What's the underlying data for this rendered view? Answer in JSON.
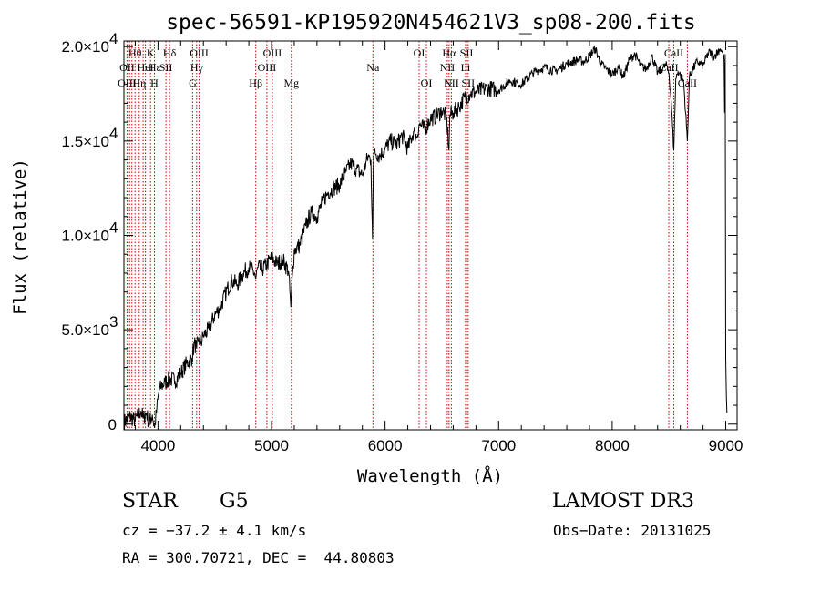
{
  "chart_data": {
    "type": "line",
    "title": "spec-56591-KP195920N454621V3_sp08-200.fits",
    "xlabel": "Wavelength (Å)",
    "ylabel": "Flux (relative)",
    "xlim": [
      3700,
      9100
    ],
    "ylim": [
      -300,
      20300
    ],
    "x_ticks": [
      {
        "value": 4000,
        "label": "4000"
      },
      {
        "value": 5000,
        "label": "5000"
      },
      {
        "value": 6000,
        "label": "6000"
      },
      {
        "value": 7000,
        "label": "7000"
      },
      {
        "value": 8000,
        "label": "8000"
      },
      {
        "value": 9000,
        "label": "9000"
      }
    ],
    "y_ticks": [
      {
        "value": 0,
        "mantissa": "0",
        "exponent": ""
      },
      {
        "value": 5000,
        "mantissa": "5.0×10",
        "exponent": "3"
      },
      {
        "value": 10000,
        "mantissa": "1.0×10",
        "exponent": "4"
      },
      {
        "value": 15000,
        "mantissa": "1.5×10",
        "exponent": "4"
      },
      {
        "value": 20000,
        "mantissa": "2.0×10",
        "exponent": "4"
      }
    ],
    "line_color": "#000000",
    "marker_color": "#cc0000",
    "series": [
      {
        "name": "flux",
        "x": [
          3700,
          3750,
          3800,
          3850,
          3870,
          3900,
          3920,
          3950,
          3970,
          3990,
          4010,
          4030,
          4060,
          4100,
          4150,
          4200,
          4250,
          4300,
          4320,
          4340,
          4360,
          4380,
          4400,
          4450,
          4500,
          4550,
          4600,
          4650,
          4700,
          4750,
          4800,
          4850,
          4861,
          4880,
          4920,
          4960,
          5000,
          5050,
          5100,
          5150,
          5170,
          5185,
          5200,
          5250,
          5300,
          5350,
          5400,
          5450,
          5500,
          5550,
          5600,
          5650,
          5700,
          5750,
          5800,
          5850,
          5875,
          5890,
          5896,
          5905,
          5950,
          6000,
          6050,
          6100,
          6150,
          6200,
          6250,
          6280,
          6300,
          6350,
          6400,
          6450,
          6500,
          6540,
          6563,
          6570,
          6600,
          6650,
          6700,
          6750,
          6800,
          6900,
          7000,
          7100,
          7200,
          7300,
          7400,
          7500,
          7600,
          7700,
          7750,
          7800,
          7850,
          7900,
          7950,
          8000,
          8050,
          8100,
          8150,
          8200,
          8250,
          8300,
          8350,
          8400,
          8450,
          8480,
          8500,
          8520,
          8542,
          8560,
          8580,
          8600,
          8630,
          8662,
          8680,
          8700,
          8750,
          8800,
          8850,
          8900,
          8950,
          8970,
          8985,
          8990,
          8995,
          9000,
          9005,
          9010
        ],
        "y": [
          100,
          400,
          200,
          700,
          300,
          600,
          0,
          500,
          -200,
          800,
          1800,
          2000,
          2200,
          2400,
          2300,
          2700,
          3200,
          3500,
          4300,
          4000,
          4500,
          4300,
          4700,
          5000,
          5800,
          6200,
          7000,
          7600,
          7400,
          8000,
          8300,
          8000,
          7700,
          8300,
          8200,
          8500,
          8800,
          8500,
          8700,
          8100,
          6200,
          8000,
          9200,
          9500,
          10500,
          11200,
          11000,
          11800,
          12300,
          12500,
          12700,
          13300,
          13800,
          13500,
          13200,
          14200,
          14000,
          9800,
          13500,
          14500,
          14200,
          14600,
          15000,
          14800,
          15300,
          14600,
          15500,
          15200,
          15900,
          15600,
          16200,
          16300,
          16600,
          16300,
          14500,
          16400,
          16500,
          16800,
          17300,
          17500,
          17600,
          17800,
          17700,
          18200,
          18000,
          18600,
          18900,
          18700,
          19100,
          19300,
          19200,
          19500,
          19900,
          19100,
          18800,
          18500,
          18900,
          18400,
          19300,
          19600,
          19000,
          18800,
          19500,
          18600,
          18900,
          19000,
          18600,
          17100,
          14500,
          18300,
          18700,
          18500,
          18100,
          15000,
          18400,
          18700,
          19200,
          19000,
          19700,
          19500,
          19900,
          19700,
          19300,
          16500,
          19600,
          3500,
          1500,
          600
        ]
      }
    ],
    "annotations": [
      {
        "label": "Hθ",
        "wavelength": 3798,
        "row": 1
      },
      {
        "label": "OII",
        "wavelength": 3727,
        "row": 2
      },
      {
        "label": "OIII",
        "wavelength": 3727,
        "row": 3
      },
      {
        "label": "Hη",
        "wavelength": 3835,
        "row": 3
      },
      {
        "label": "K",
        "wavelength": 3934,
        "row": 1
      },
      {
        "label": "Hε",
        "wavelength": 3970,
        "row": 2
      },
      {
        "label": "H",
        "wavelength": 3969,
        "row": 3
      },
      {
        "label": "HeI",
        "wavelength": 3889,
        "row": 2
      },
      {
        "label": "SII",
        "wavelength": 4070,
        "row": 2
      },
      {
        "label": "Hδ",
        "wavelength": 4102,
        "row": 1
      },
      {
        "label": "OIII",
        "wavelength": 4363,
        "row": 1
      },
      {
        "label": "Hγ",
        "wavelength": 4340,
        "row": 2
      },
      {
        "label": "G",
        "wavelength": 4305,
        "row": 3
      },
      {
        "label": "OIII",
        "wavelength": 5007,
        "row": 1
      },
      {
        "label": "OIII",
        "wavelength": 4959,
        "row": 2
      },
      {
        "label": "Hβ",
        "wavelength": 4861,
        "row": 3
      },
      {
        "label": "Mg",
        "wavelength": 5175,
        "row": 3
      },
      {
        "label": "Na",
        "wavelength": 5893,
        "row": 2
      },
      {
        "label": "OI",
        "wavelength": 6300,
        "row": 1
      },
      {
        "label": "OI",
        "wavelength": 6364,
        "row": 3
      },
      {
        "label": "Hα",
        "wavelength": 6563,
        "row": 1
      },
      {
        "label": "NII",
        "wavelength": 6548,
        "row": 2
      },
      {
        "label": "NII",
        "wavelength": 6584,
        "row": 3
      },
      {
        "label": "SII",
        "wavelength": 6717,
        "row": 1
      },
      {
        "label": "Li",
        "wavelength": 6708,
        "row": 2
      },
      {
        "label": "SII",
        "wavelength": 6731,
        "row": 3
      },
      {
        "label": "CaII",
        "wavelength": 8542,
        "row": 1
      },
      {
        "label": "CaII",
        "wavelength": 8498,
        "row": 2
      },
      {
        "label": "CaII",
        "wavelength": 8662,
        "row": 3
      }
    ],
    "marker_lines": [
      3727,
      3750,
      3771,
      3798,
      3835,
      3869,
      3889,
      3934,
      3969,
      4070,
      4102,
      4305,
      4340,
      4363,
      4861,
      4959,
      5007,
      5175,
      5893,
      6300,
      6364,
      6548,
      6563,
      6584,
      6708,
      6717,
      6731,
      8498,
      8542,
      8662
    ]
  },
  "info": {
    "object_class": "STAR",
    "subclass": "G5",
    "survey": "LAMOST DR3",
    "cz": "cz = −37.2 ± 4.1 km/s",
    "obs_date": "Obs−Date: 20131025",
    "coords": "RA = 300.70721, DEC =  44.80803"
  }
}
